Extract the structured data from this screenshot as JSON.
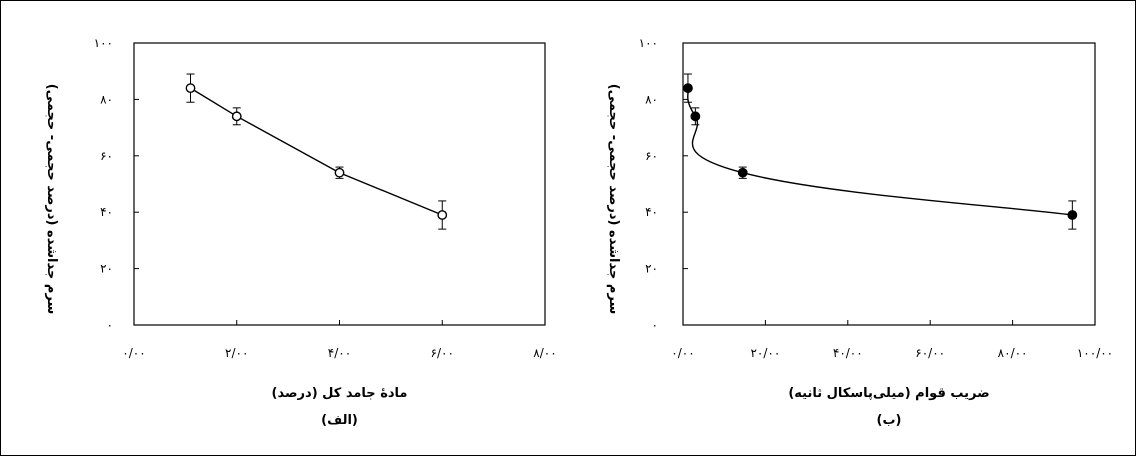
{
  "chart_data": [
    {
      "type": "line",
      "caption": "(الف)",
      "xlabel": "مادهٔ جامد کل (درصد)",
      "ylabel": "سرم جداشده (درصد حجمی- حجمی)",
      "xlim": [
        0,
        8
      ],
      "ylim": [
        0,
        100
      ],
      "x_ticks": [
        0,
        2,
        4,
        6,
        8
      ],
      "x_tick_labels": [
        "۰/۰۰",
        "۲/۰۰",
        "۴/۰۰",
        "۶/۰۰",
        "۸/۰۰"
      ],
      "y_ticks": [
        0,
        20,
        40,
        60,
        80,
        100
      ],
      "y_tick_labels": [
        "۰",
        "۲۰",
        "۴۰",
        "۶۰",
        "۸۰",
        "۱۰۰"
      ],
      "marker": "open-circle",
      "series": [
        {
          "x": [
            1.1,
            2.0,
            4.0,
            6.0
          ],
          "y": [
            84,
            74,
            54,
            39
          ],
          "err": [
            5,
            3,
            2,
            5
          ]
        }
      ]
    },
    {
      "type": "line",
      "caption": "(ب)",
      "xlabel": "ضریب قوام (میلی‌پاسکال ثانیه)",
      "ylabel": "سرم جداشده (درصد حجمی- حجمی)",
      "xlim": [
        0,
        100
      ],
      "ylim": [
        0,
        100
      ],
      "x_ticks": [
        0,
        20,
        40,
        60,
        80,
        100
      ],
      "x_tick_labels": [
        "۰/۰۰",
        "۲۰/۰۰",
        "۴۰/۰۰",
        "۶۰/۰۰",
        "۸۰/۰۰",
        "۱۰۰/۰۰"
      ],
      "y_ticks": [
        0,
        20,
        40,
        60,
        80,
        100
      ],
      "y_tick_labels": [
        "۰",
        "۲۰",
        "۴۰",
        "۶۰",
        "۸۰",
        "۱۰۰"
      ],
      "marker": "filled-circle",
      "series": [
        {
          "x": [
            1.2,
            3.0,
            14.5,
            94.5
          ],
          "y": [
            84,
            74,
            54,
            39
          ],
          "err": [
            5,
            3,
            2,
            5
          ]
        }
      ]
    }
  ]
}
